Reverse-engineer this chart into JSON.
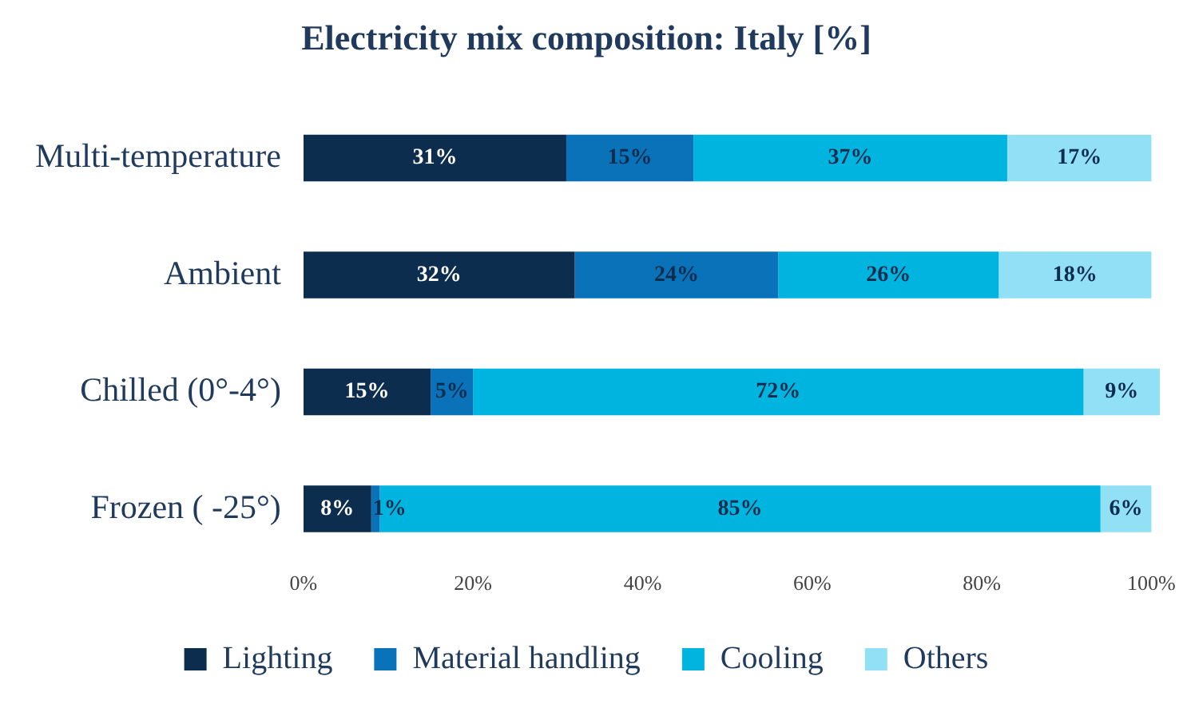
{
  "chart_data": {
    "type": "bar",
    "orientation": "horizontal",
    "stacked": true,
    "title": "Electricity mix composition: Italy [%]",
    "categories": [
      "Multi-temperature",
      "Ambient",
      "Chilled (0°-4°)",
      "Frozen ( -25°)"
    ],
    "series": [
      {
        "name": "Lighting",
        "color": "#0d2d4f",
        "values": [
          31,
          32,
          15,
          8
        ],
        "value_labels": [
          "31%",
          "32%",
          "15%",
          "8%"
        ]
      },
      {
        "name": "Material handling",
        "color": "#0a72b8",
        "values": [
          15,
          24,
          5,
          1
        ],
        "value_labels": [
          "15%",
          "24%",
          "5%",
          "1%"
        ]
      },
      {
        "name": "Cooling",
        "color": "#00b4e0",
        "values": [
          37,
          26,
          72,
          85
        ],
        "value_labels": [
          "37%",
          "26%",
          "72%",
          "85%"
        ]
      },
      {
        "name": "Others",
        "color": "#92e0f5",
        "values": [
          17,
          18,
          9,
          6
        ],
        "value_labels": [
          "17%",
          "18%",
          "9%",
          "6%"
        ]
      }
    ],
    "xlim": [
      0,
      101
    ],
    "xticks": [
      {
        "value": 0,
        "label": "0%"
      },
      {
        "value": 20,
        "label": "20%"
      },
      {
        "value": 40,
        "label": "40%"
      },
      {
        "value": 60,
        "label": "60%"
      },
      {
        "value": 80,
        "label": "80%"
      },
      {
        "value": 100,
        "label": "100%"
      }
    ],
    "grid": false,
    "legend": "bottom"
  }
}
